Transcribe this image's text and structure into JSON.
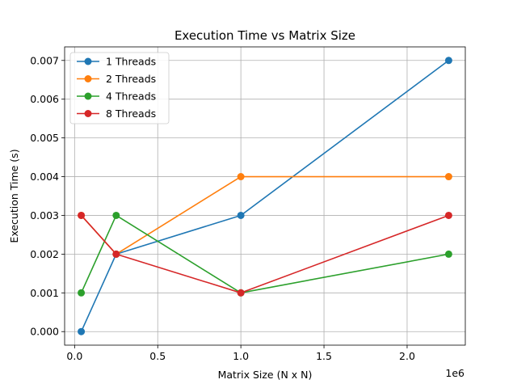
{
  "chart_data": {
    "type": "line",
    "title": "Execution Time vs Matrix Size",
    "xlabel": "Matrix Size (N x N)",
    "ylabel": "Execution Time (s)",
    "x_offset_label": "1e6",
    "x": [
      40000,
      250000,
      1000000,
      2250000
    ],
    "xlim": [
      -60000,
      2350000
    ],
    "ylim": [
      -0.00035,
      0.00735
    ],
    "x_ticks": [
      0,
      0.5,
      1.0,
      1.5,
      2.0
    ],
    "x_tick_labels": [
      "0.0",
      "0.5",
      "1.0",
      "1.5",
      "2.0"
    ],
    "y_ticks": [
      0,
      0.001,
      0.002,
      0.003,
      0.004,
      0.005,
      0.006,
      0.007
    ],
    "y_tick_labels": [
      "0.000",
      "0.001",
      "0.002",
      "0.003",
      "0.004",
      "0.005",
      "0.006",
      "0.007"
    ],
    "grid": true,
    "legend_position": "top-left",
    "series": [
      {
        "name": "1 Threads",
        "color": "#1f77b4",
        "values": [
          0.0,
          0.002,
          0.003,
          0.007
        ]
      },
      {
        "name": "2 Threads",
        "color": "#ff7f0e",
        "values": [
          0.003,
          0.002,
          0.004,
          0.004
        ]
      },
      {
        "name": "4 Threads",
        "color": "#2ca02c",
        "values": [
          0.001,
          0.003,
          0.001,
          0.002
        ]
      },
      {
        "name": "8 Threads",
        "color": "#d62728",
        "values": [
          0.003,
          0.002,
          0.001,
          0.003
        ]
      }
    ]
  }
}
